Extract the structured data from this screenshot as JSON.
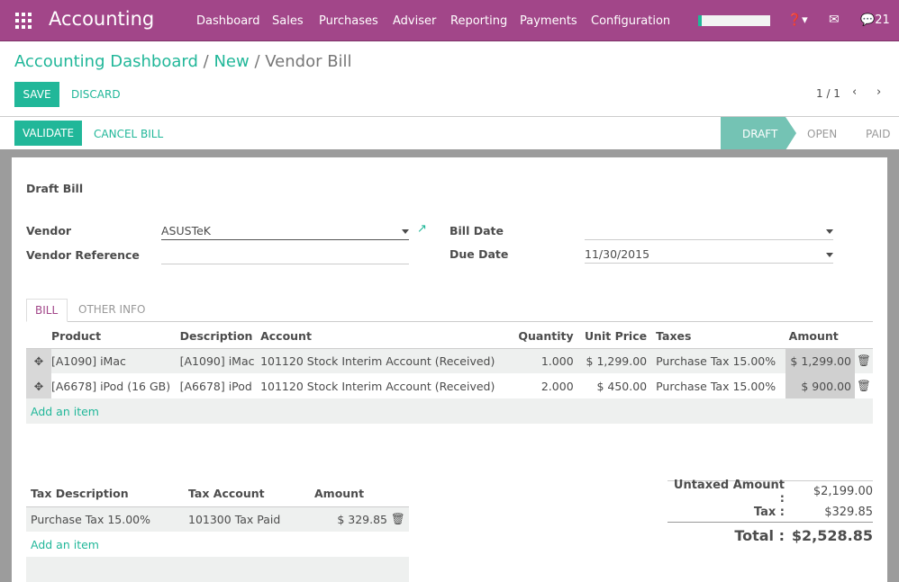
{
  "app": {
    "title": "Accounting",
    "menu": [
      "Dashboard",
      "Sales",
      "Purchases",
      "Adviser",
      "Reporting",
      "Payments",
      "Configuration"
    ],
    "messages_count": "21",
    "brand_color": "#a24689",
    "accent_color": "#21b799"
  },
  "breadcrumb": {
    "items": [
      "Accounting Dashboard",
      "New"
    ],
    "current": "Vendor Bill"
  },
  "toolbar": {
    "save": "SAVE",
    "discard": "DISCARD",
    "pager": "1 / 1"
  },
  "actions": {
    "validate": "VALIDATE",
    "cancel": "CANCEL BILL"
  },
  "status": {
    "steps": [
      "DRAFT",
      "OPEN",
      "PAID"
    ],
    "active": "DRAFT"
  },
  "form": {
    "title": "Draft Bill",
    "vendor_label": "Vendor",
    "vendor": "ASUSTeK",
    "vendor_ref_label": "Vendor Reference",
    "vendor_ref": "",
    "bill_date_label": "Bill Date",
    "bill_date": "",
    "due_date_label": "Due Date",
    "due_date": "11/30/2015"
  },
  "tabs": [
    "BILL",
    "OTHER INFO"
  ],
  "lines": {
    "headers": [
      "Product",
      "Description",
      "Account",
      "Quantity",
      "Unit Price",
      "Taxes",
      "Amount"
    ],
    "rows": [
      [
        "[A1090] iMac",
        "[A1090] iMac",
        "101120 Stock Interim Account (Received)",
        "1.000",
        "$ 1,299.00",
        "Purchase Tax 15.00%",
        "$ 1,299.00"
      ],
      [
        "[A6678] iPod (16 GB)",
        "[A6678] iPod",
        "101120 Stock Interim Account (Received)",
        "2.000",
        "$ 450.00",
        "Purchase Tax 15.00%",
        "$ 900.00"
      ]
    ],
    "add": "Add an item"
  },
  "taxes": {
    "headers": [
      "Tax Description",
      "Tax Account",
      "Amount"
    ],
    "rows": [
      [
        "Purchase Tax 15.00%",
        "101300 Tax Paid",
        "$ 329.85"
      ]
    ],
    "add": "Add an item"
  },
  "totals": {
    "untaxed_label": "Untaxed Amount :",
    "untaxed": "$2,199.00",
    "tax_label": "Tax :",
    "tax": "$329.85",
    "total_label": "Total :",
    "total": "$2,528.85"
  }
}
